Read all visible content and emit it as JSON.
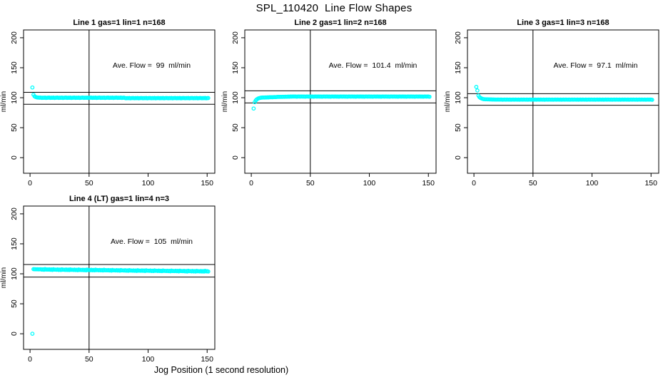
{
  "chart_data": {
    "type": "scatter",
    "title": "SPL_110420  Line Flow Shapes",
    "xlabel": "Jog Position (1 second resolution)",
    "ylabel": "ml/min",
    "x_ticks": [
      0,
      50,
      100,
      150
    ],
    "y_ticks": [
      0,
      50,
      100,
      150,
      200
    ],
    "xlim": [
      -5.5,
      156.5
    ],
    "ylim": [
      -26,
      213
    ],
    "grid": false,
    "point_color": "#00FFFF",
    "line_color": "#000000",
    "legend": "none",
    "panels": [
      {
        "name": "line-1",
        "title": "Line 1 gas=1 lin=1 n=168",
        "annotation": "Ave. Flow =  99  ml/min",
        "ave_flow_ml_min": 99,
        "hlines": [
          108.9,
          89.1
        ],
        "vline": 50,
        "n": 168,
        "x_start": 2,
        "x_step": 0.892,
        "y": [
          117,
          105,
          102.3,
          101.2,
          100.6,
          100.3,
          100.1,
          100,
          100.1,
          99.7,
          100,
          99.8,
          100.2,
          99.6,
          99.9,
          100,
          100.1,
          99.7,
          100,
          99.8,
          100.2,
          99.6,
          99.9,
          100,
          100.1,
          99.7,
          100,
          99.8,
          100.2,
          99.6,
          99.9,
          100,
          100.1,
          99.7,
          100,
          99.8,
          100.2,
          99.6,
          99.9,
          100,
          100.1,
          99.7,
          100,
          99.8,
          100.2,
          99.6,
          99.9,
          100,
          100.1,
          99.7,
          100,
          99.8,
          100.2,
          99.6,
          99.9,
          100,
          100.1,
          99.7,
          100,
          99.8,
          100.2,
          99.6,
          99.9,
          100,
          100.1,
          99.7,
          100,
          99.8,
          100.2,
          99.6,
          99.9,
          100,
          100.1,
          99.7,
          100,
          99.8,
          100.2,
          99.6,
          99.9,
          100,
          100.1,
          99.7,
          100,
          99.8,
          100.2,
          99.6,
          99.9,
          100,
          99.5,
          99.1,
          99.4,
          99.2,
          99.6,
          99,
          99.3,
          99.4,
          99.5,
          99.1,
          99.4,
          99.2,
          99.6,
          99,
          99.3,
          99.4,
          99.5,
          99.1,
          99.4,
          99.2,
          99.6,
          99,
          99.3,
          99.4,
          99.5,
          99.1,
          99.4,
          99.2,
          99.6,
          99,
          99.3,
          99.4,
          99.5,
          99.1,
          99.4,
          99.2,
          99.6,
          99,
          99.3,
          99.4,
          99.5,
          99.1,
          99.4,
          99.2,
          99.6,
          99,
          99.3,
          99.4,
          99.5,
          99.1,
          99.4,
          99.2,
          99.6,
          99,
          99.3,
          99.4,
          99.5,
          99.1,
          99.4,
          99.2,
          99.6,
          99,
          99.3,
          99.4,
          99.5,
          99.1,
          99.4,
          99.2,
          99.6,
          99,
          99.3,
          99.4,
          99.5,
          99.1,
          99.4,
          99.2,
          99.6,
          99,
          99.3,
          99.4
        ]
      },
      {
        "name": "line-2",
        "title": "Line 2 gas=1 lin=2 n=168",
        "annotation": "Ave. Flow =  101.4  ml/min",
        "ave_flow_ml_min": 101.4,
        "hlines": [
          111.5,
          91.3
        ],
        "vline": 50,
        "n": 168,
        "x_start": 2,
        "x_step": 0.892,
        "y": [
          82,
          92.5,
          95.5,
          97.3,
          98.4,
          99.2,
          99.7,
          100,
          100.2,
          100.4,
          100.3,
          100.5,
          100.4,
          100.6,
          100.5,
          100.7,
          100.8,
          100.9,
          100.8,
          101,
          101.1,
          101,
          101.2,
          101.3,
          101.3,
          101.4,
          101.5,
          101.4,
          101.6,
          101.5,
          101.7,
          101.6,
          101.7,
          101.8,
          101.7,
          101.9,
          101.8,
          102,
          101.9,
          102,
          102,
          101.7,
          101.9,
          102.1,
          101.8,
          102,
          101.9,
          101.8,
          102,
          101.7,
          101.9,
          102.1,
          101.8,
          102,
          101.9,
          101.8,
          102,
          101.7,
          101.9,
          102.1,
          101.8,
          102,
          101.9,
          101.8,
          102,
          101.7,
          101.9,
          102.1,
          101.8,
          102,
          101.9,
          101.8,
          102,
          101.7,
          101.9,
          102.1,
          101.8,
          102,
          101.9,
          101.8,
          102,
          101.7,
          101.9,
          102.1,
          101.8,
          102,
          101.9,
          101.8,
          102,
          101.7,
          101.9,
          102.1,
          101.8,
          102,
          101.9,
          101.8,
          102,
          101.7,
          101.9,
          102.1,
          101.8,
          102,
          101.9,
          101.8,
          102,
          101.7,
          101.9,
          102.1,
          101.8,
          102,
          101.9,
          101.8,
          102,
          101.7,
          101.9,
          102.1,
          101.8,
          102,
          101.9,
          101.8,
          102,
          101.7,
          101.9,
          102.1,
          101.8,
          102,
          101.9,
          101.8,
          102,
          101.7,
          101.9,
          102.1,
          101.8,
          102,
          101.9,
          101.8,
          102,
          101.7,
          101.9,
          102.1,
          101.8,
          102,
          101.9,
          101.8,
          102,
          101.7,
          101.9,
          102.1,
          101.8,
          102,
          101.9,
          101.8,
          102,
          101.7,
          101.9,
          102.1,
          101.8,
          102,
          101.9,
          101.8,
          102,
          101.7,
          101.9,
          102.1,
          101.8,
          102,
          101.9,
          101.6
        ]
      },
      {
        "name": "line-3",
        "title": "Line 3 gas=1 lin=3 n=168",
        "annotation": "Ave. Flow =  97.1  ml/min",
        "ave_flow_ml_min": 97.1,
        "hlines": [
          106.8,
          87.4
        ],
        "vline": 50,
        "n": 168,
        "x_start": 2,
        "x_step": 0.892,
        "y": [
          118,
          112,
          103.5,
          101,
          99.7,
          98.7,
          98,
          97.6,
          97.5,
          97.3,
          97.4,
          97.2,
          97.3,
          97.1,
          97.2,
          97,
          97.1,
          96.9,
          97,
          96.8,
          97,
          96.9,
          96.8,
          96.9,
          96.9,
          96.6,
          96.8,
          97,
          96.7,
          96.9,
          96.8,
          96.7,
          96.9,
          96.6,
          96.8,
          97,
          96.7,
          96.9,
          96.8,
          96.7,
          96.9,
          96.6,
          96.8,
          97,
          96.7,
          96.9,
          96.8,
          96.7,
          96.9,
          96.6,
          96.8,
          97,
          96.7,
          96.9,
          96.8,
          96.7,
          96.9,
          96.6,
          96.8,
          97,
          96.7,
          96.9,
          96.8,
          96.7,
          96.9,
          96.6,
          96.8,
          97,
          96.7,
          96.9,
          96.8,
          96.7,
          96.9,
          96.6,
          96.8,
          97,
          96.7,
          96.9,
          96.8,
          96.7,
          96.9,
          96.6,
          96.8,
          97,
          96.7,
          96.9,
          96.8,
          96.7,
          96.9,
          96.6,
          96.8,
          97,
          96.7,
          96.9,
          96.8,
          96.7,
          96.9,
          96.6,
          96.8,
          97,
          96.7,
          96.9,
          96.8,
          96.7,
          96.9,
          96.6,
          96.8,
          97,
          96.7,
          96.9,
          96.8,
          96.7,
          96.9,
          96.6,
          96.8,
          97,
          96.7,
          96.9,
          96.8,
          96.7,
          96.9,
          96.6,
          96.8,
          97,
          96.7,
          96.9,
          96.8,
          96.7,
          96.9,
          96.6,
          96.8,
          97,
          96.7,
          96.9,
          96.8,
          96.7,
          96.9,
          96.6,
          96.8,
          97,
          96.7,
          96.9,
          96.8,
          96.7,
          96.9,
          96.6,
          96.8,
          97,
          96.7,
          96.9,
          96.8,
          96.7,
          96.9,
          96.6,
          96.8,
          97,
          96.7,
          96.9,
          96.8,
          96.7,
          96.9,
          96.6,
          96.8,
          97,
          96.7,
          96.9,
          96.8,
          96.5
        ]
      },
      {
        "name": "line-4",
        "title": "Line 4 (LT) gas=1 lin=4 n=3",
        "annotation": "Ave. Flow =  105  ml/min",
        "ave_flow_ml_min": 105,
        "hlines": [
          115.5,
          94.5
        ],
        "vline": 50,
        "n": 3,
        "x_start": 2,
        "x_step": 0.892,
        "y": [
          0,
          107.8,
          107.6,
          107.7,
          107.5,
          107.6,
          107.4,
          107.5,
          107.7,
          106.9,
          107.5,
          106.7,
          107.9,
          107.1,
          107.3,
          106.9,
          107.5,
          106.7,
          107.3,
          106.5,
          107.7,
          106.9,
          107.1,
          106.7,
          107.3,
          106.5,
          107.1,
          106.3,
          107.5,
          106.7,
          106.9,
          106.5,
          107.2,
          106.4,
          107,
          106.2,
          107.4,
          106.6,
          106.8,
          106.4,
          107,
          106.2,
          106.8,
          106,
          107.2,
          106.4,
          106.6,
          106.2,
          106.8,
          106,
          106.6,
          105.8,
          107,
          106.2,
          106.4,
          106,
          106.7,
          105.9,
          106.5,
          105.7,
          106.9,
          106.1,
          106.3,
          105.9,
          106.5,
          105.7,
          106.3,
          105.5,
          106.7,
          105.9,
          106.1,
          105.7,
          106.3,
          105.5,
          106.1,
          105.3,
          106.5,
          105.7,
          105.9,
          105.5,
          106.2,
          105.4,
          106,
          105.2,
          106.4,
          105.6,
          105.8,
          105.4,
          106,
          105.2,
          105.8,
          105,
          106.2,
          105.4,
          105.6,
          105.2,
          105.8,
          105,
          105.6,
          104.8,
          106,
          105.2,
          105.4,
          105,
          105.7,
          104.9,
          105.5,
          104.7,
          105.9,
          105.1,
          105.3,
          104.9,
          105.5,
          104.7,
          105.3,
          104.5,
          105.7,
          104.9,
          105.1,
          104.7,
          105.4,
          104.6,
          105.2,
          104.4,
          105.6,
          104.8,
          105,
          104.6,
          105.2,
          104.4,
          105,
          104.2,
          105.4,
          104.6,
          104.8,
          104.4,
          105.1,
          104.3,
          104.9,
          104.1,
          105.3,
          104.5,
          104.7,
          104.3,
          104.9,
          104.1,
          104.7,
          103.9,
          105.1,
          104.3,
          104.5,
          104.1,
          104.8,
          104,
          104.6,
          103.8,
          105,
          104.2,
          104.4,
          104,
          104.7,
          103.9,
          104.5,
          103.7,
          104.9,
          104.1,
          104.3,
          103.9
        ]
      }
    ]
  }
}
